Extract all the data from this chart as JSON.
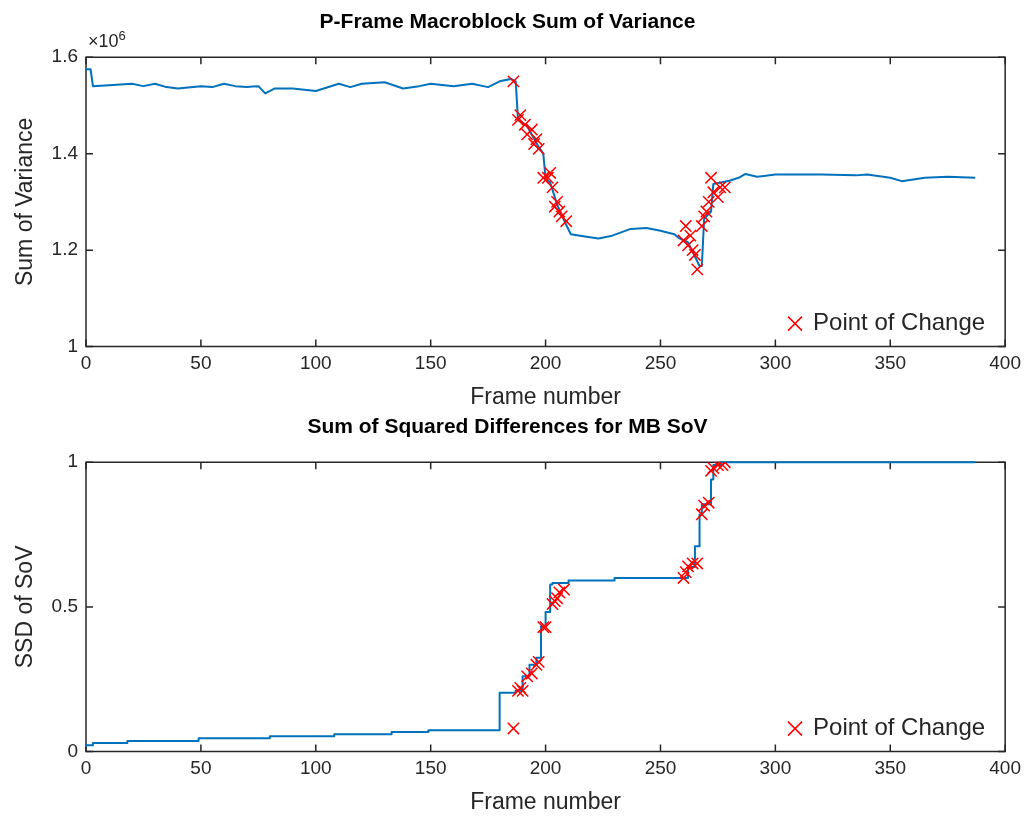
{
  "chart_data": [
    {
      "type": "line",
      "title": "P-Frame Macroblock Sum of Variance",
      "xlabel": "Frame number",
      "ylabel": "Sum of Variance",
      "annotations": [
        "×10$^{6}$"
      ],
      "xlim": [
        0,
        400
      ],
      "xticks": [
        0,
        50,
        100,
        150,
        200,
        250,
        300,
        350,
        400
      ],
      "ylim": [
        1,
        1.6
      ],
      "yticks": [
        1,
        1.2,
        1.4,
        1.6
      ],
      "grid": false,
      "legend": "bottom right",
      "series": [
        {
          "color": "#0072bd",
          "x": [
            0,
            2,
            3,
            10,
            20,
            25,
            30,
            35,
            40,
            50,
            55,
            60,
            65,
            70,
            75,
            78,
            82,
            90,
            100,
            110,
            115,
            120,
            130,
            138,
            145,
            150,
            160,
            168,
            175,
            180,
            185,
            187,
            188,
            192,
            197,
            199,
            200,
            202,
            205,
            209,
            211,
            215,
            223,
            229,
            237,
            244,
            250,
            256,
            258,
            262,
            267,
            268,
            269,
            272,
            273,
            280,
            284,
            287,
            292,
            300,
            320,
            335,
            340,
            350,
            355,
            365,
            375,
            387
          ],
          "values": [
            1.575,
            1.575,
            1.54,
            1.542,
            1.545,
            1.54,
            1.545,
            1.538,
            1.535,
            1.54,
            1.538,
            1.545,
            1.54,
            1.538,
            1.54,
            1.525,
            1.535,
            1.535,
            1.53,
            1.545,
            1.538,
            1.545,
            1.548,
            1.535,
            1.54,
            1.545,
            1.54,
            1.545,
            1.538,
            1.55,
            1.555,
            1.55,
            1.47,
            1.457,
            1.414,
            1.4,
            1.348,
            1.34,
            1.295,
            1.252,
            1.233,
            1.23,
            1.224,
            1.23,
            1.244,
            1.246,
            1.24,
            1.233,
            1.225,
            1.216,
            1.167,
            1.167,
            1.265,
            1.28,
            1.337,
            1.344,
            1.35,
            1.358,
            1.352,
            1.357,
            1.357,
            1.355,
            1.357,
            1.35,
            1.343,
            1.35,
            1.352,
            1.35
          ]
        },
        {
          "type": "scatter",
          "name": "Point of Change",
          "color": "#ff0000",
          "marker": "cross",
          "x": [
            186,
            188,
            189,
            191,
            192,
            194,
            195,
            196,
            197,
            199,
            201,
            202,
            203,
            204,
            205,
            206,
            207,
            209,
            260,
            261,
            262,
            263,
            264,
            265,
            266,
            268,
            269,
            270,
            271,
            272,
            273,
            275,
            276,
            278
          ],
          "values": [
            1.55,
            1.47,
            1.48,
            1.46,
            1.44,
            1.45,
            1.42,
            1.43,
            1.41,
            1.35,
            1.35,
            1.36,
            1.33,
            1.29,
            1.3,
            1.28,
            1.27,
            1.26,
            1.22,
            1.25,
            1.21,
            1.23,
            1.2,
            1.19,
            1.16,
            1.25,
            1.27,
            1.28,
            1.3,
            1.35,
            1.32,
            1.31,
            1.33,
            1.33
          ]
        }
      ]
    },
    {
      "type": "step",
      "title": "Sum of Squared Differences for MB SoV",
      "xlabel": "Frame number",
      "ylabel": "SSD of SoV",
      "xlim": [
        0,
        400
      ],
      "xticks": [
        0,
        50,
        100,
        150,
        200,
        250,
        300,
        350,
        400
      ],
      "ylim": [
        0,
        1
      ],
      "yticks": [
        0,
        0.5,
        1
      ],
      "grid": false,
      "legend": "bottom right",
      "series": [
        {
          "color": "#0072bd",
          "x": [
            0,
            3,
            18,
            49,
            80,
            108,
            133,
            149,
            180,
            187,
            190,
            193,
            196,
            198,
            200,
            202,
            203,
            210,
            230,
            262,
            265,
            267,
            268,
            272,
            273,
            276,
            280,
            387
          ],
          "values": [
            0.016,
            0.022,
            0.03,
            0.037,
            0.046,
            0.053,
            0.06,
            0.068,
            0.074,
            0.203,
            0.21,
            0.26,
            0.3,
            0.324,
            0.432,
            0.482,
            0.577,
            0.583,
            0.591,
            0.6,
            0.638,
            0.71,
            0.819,
            0.855,
            0.94,
            0.99,
            1.0,
            1.0
          ]
        },
        {
          "type": "scatter",
          "name": "Point of Change",
          "color": "#ff0000",
          "marker": "cross",
          "x": [
            186,
            188,
            189,
            190,
            192,
            194,
            196,
            197,
            199,
            200,
            203,
            204,
            205,
            206,
            208,
            260,
            261,
            262,
            264,
            266,
            268,
            269,
            271,
            272,
            273,
            275,
            277,
            278
          ],
          "values": [
            0.08,
            0.21,
            0.22,
            0.21,
            0.26,
            0.27,
            0.3,
            0.31,
            0.43,
            0.43,
            0.51,
            0.52,
            0.53,
            0.55,
            0.56,
            0.6,
            0.62,
            0.64,
            0.65,
            0.65,
            0.82,
            0.85,
            0.86,
            0.97,
            0.98,
            0.99,
            0.99,
            1.0
          ]
        }
      ]
    }
  ]
}
